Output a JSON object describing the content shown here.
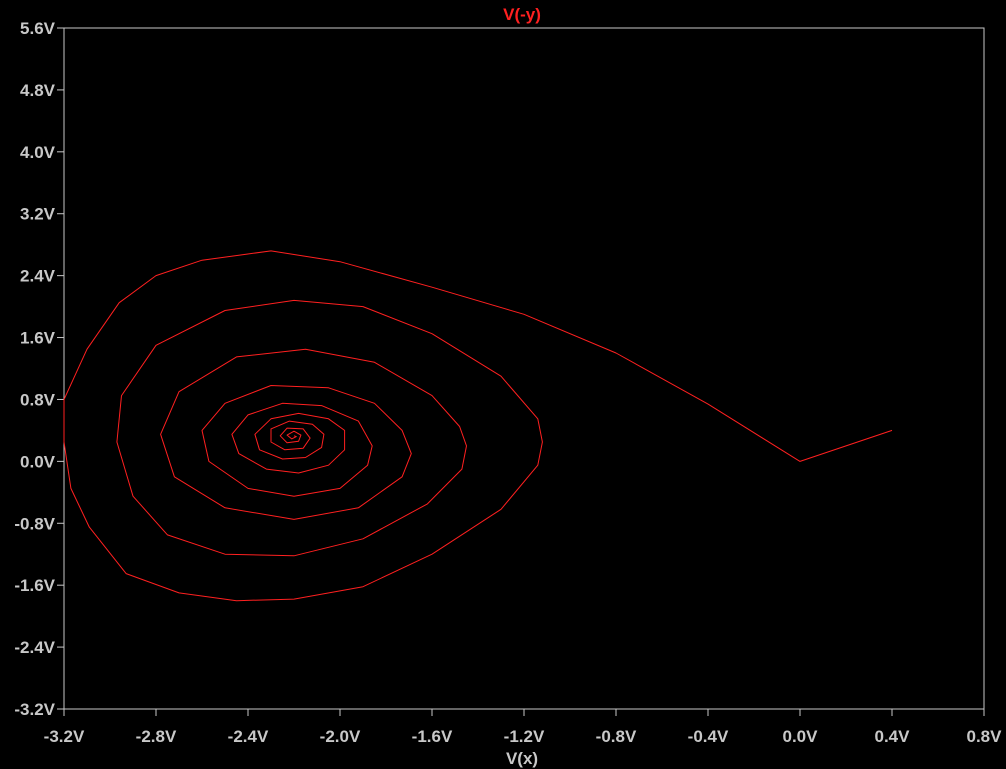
{
  "chart_data": {
    "type": "line",
    "title": "V(-y)",
    "xlabel": "V(x)",
    "ylabel": "",
    "xlim": [
      -3.2,
      0.8
    ],
    "ylim": [
      -3.2,
      5.6
    ],
    "x_ticks": [
      -3.2,
      -2.8,
      -2.4,
      -2.0,
      -1.6,
      -1.2,
      -0.8,
      -0.4,
      0.0,
      0.4,
      0.8
    ],
    "x_tick_labels": [
      "-3.2V",
      "-2.8V",
      "-2.4V",
      "-2.0V",
      "-1.6V",
      "-1.2V",
      "-0.8V",
      "-0.4V",
      "0.0V",
      "0.4V",
      "0.8V"
    ],
    "y_ticks": [
      5.6,
      4.8,
      4.0,
      3.2,
      2.4,
      1.6,
      0.8,
      0.0,
      -0.8,
      -1.6,
      -2.4,
      -3.2
    ],
    "y_tick_labels": [
      "5.6V",
      "4.8V",
      "4.0V",
      "3.2V",
      "2.4V",
      "1.6V",
      "0.8V",
      "0.0V",
      "-0.8V",
      "-1.6V",
      "-2.4V",
      "-3.2V"
    ],
    "grid": false,
    "background": "#000000",
    "axis_color": "#c8c8c8",
    "series": [
      {
        "color": "#ff2020",
        "points": [
          [
            0.4,
            0.4
          ],
          [
            0.0,
            0.0
          ],
          [
            -0.4,
            0.74
          ],
          [
            -0.8,
            1.4
          ],
          [
            -1.2,
            1.9
          ],
          [
            -1.6,
            2.25
          ],
          [
            -2.0,
            2.58
          ],
          [
            -2.3,
            2.72
          ],
          [
            -2.6,
            2.6
          ],
          [
            -2.8,
            2.4
          ],
          [
            -2.96,
            2.05
          ],
          [
            -3.1,
            1.45
          ],
          [
            -3.2,
            0.8
          ],
          [
            -3.2,
            0.25
          ],
          [
            -3.17,
            -0.35
          ],
          [
            -3.09,
            -0.85
          ],
          [
            -2.93,
            -1.45
          ],
          [
            -2.7,
            -1.7
          ],
          [
            -2.45,
            -1.8
          ],
          [
            -2.2,
            -1.78
          ],
          [
            -1.9,
            -1.62
          ],
          [
            -1.6,
            -1.2
          ],
          [
            -1.3,
            -0.62
          ],
          [
            -1.14,
            -0.05
          ],
          [
            -1.12,
            0.25
          ],
          [
            -1.14,
            0.55
          ],
          [
            -1.3,
            1.1
          ],
          [
            -1.6,
            1.65
          ],
          [
            -1.9,
            2.0
          ],
          [
            -2.2,
            2.08
          ],
          [
            -2.5,
            1.95
          ],
          [
            -2.8,
            1.5
          ],
          [
            -2.95,
            0.85
          ],
          [
            -2.97,
            0.25
          ],
          [
            -2.9,
            -0.45
          ],
          [
            -2.75,
            -0.95
          ],
          [
            -2.5,
            -1.2
          ],
          [
            -2.2,
            -1.22
          ],
          [
            -1.9,
            -1.0
          ],
          [
            -1.62,
            -0.55
          ],
          [
            -1.47,
            -0.1
          ],
          [
            -1.45,
            0.2
          ],
          [
            -1.48,
            0.45
          ],
          [
            -1.6,
            0.85
          ],
          [
            -1.85,
            1.28
          ],
          [
            -2.15,
            1.45
          ],
          [
            -2.45,
            1.35
          ],
          [
            -2.7,
            0.9
          ],
          [
            -2.78,
            0.35
          ],
          [
            -2.72,
            -0.2
          ],
          [
            -2.5,
            -0.6
          ],
          [
            -2.2,
            -0.75
          ],
          [
            -1.92,
            -0.6
          ],
          [
            -1.73,
            -0.2
          ],
          [
            -1.69,
            0.1
          ],
          [
            -1.73,
            0.4
          ],
          [
            -1.85,
            0.75
          ],
          [
            -2.05,
            0.95
          ],
          [
            -2.3,
            0.98
          ],
          [
            -2.5,
            0.75
          ],
          [
            -2.6,
            0.4
          ],
          [
            -2.57,
            0.0
          ],
          [
            -2.4,
            -0.35
          ],
          [
            -2.2,
            -0.45
          ],
          [
            -2.0,
            -0.35
          ],
          [
            -1.88,
            -0.05
          ],
          [
            -1.86,
            0.2
          ],
          [
            -1.92,
            0.52
          ],
          [
            -2.08,
            0.72
          ],
          [
            -2.25,
            0.75
          ],
          [
            -2.4,
            0.6
          ],
          [
            -2.47,
            0.35
          ],
          [
            -2.44,
            0.1
          ],
          [
            -2.32,
            -0.1
          ],
          [
            -2.18,
            -0.15
          ],
          [
            -2.05,
            -0.05
          ],
          [
            -1.98,
            0.15
          ],
          [
            -1.98,
            0.4
          ],
          [
            -2.05,
            0.55
          ],
          [
            -2.18,
            0.62
          ],
          [
            -2.3,
            0.55
          ],
          [
            -2.37,
            0.35
          ],
          [
            -2.35,
            0.15
          ],
          [
            -2.25,
            0.03
          ],
          [
            -2.15,
            0.05
          ],
          [
            -2.08,
            0.18
          ],
          [
            -2.07,
            0.35
          ],
          [
            -2.12,
            0.48
          ],
          [
            -2.22,
            0.52
          ],
          [
            -2.3,
            0.42
          ],
          [
            -2.3,
            0.25
          ],
          [
            -2.24,
            0.15
          ],
          [
            -2.16,
            0.17
          ],
          [
            -2.13,
            0.3
          ],
          [
            -2.16,
            0.42
          ],
          [
            -2.23,
            0.43
          ],
          [
            -2.26,
            0.33
          ],
          [
            -2.23,
            0.24
          ],
          [
            -2.18,
            0.26
          ],
          [
            -2.17,
            0.34
          ],
          [
            -2.2,
            0.39
          ],
          [
            -2.23,
            0.34
          ],
          [
            -2.21,
            0.29
          ],
          [
            -2.19,
            0.32
          ],
          [
            -2.2,
            0.33
          ]
        ]
      }
    ]
  }
}
